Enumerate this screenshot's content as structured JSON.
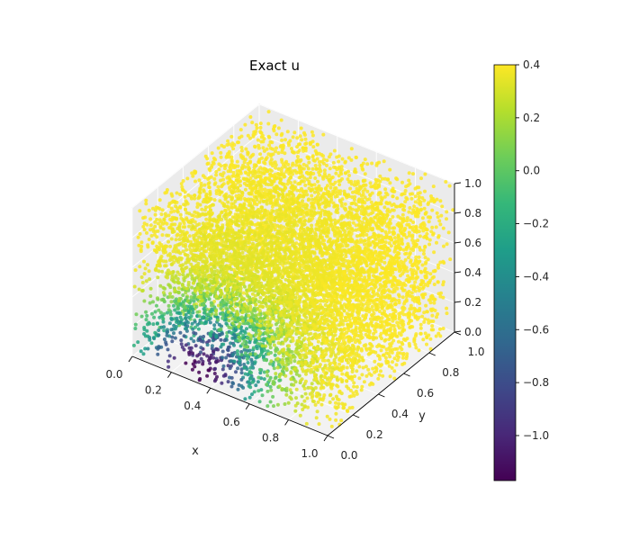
{
  "chart_data": {
    "type": "scatter",
    "projection": "3d",
    "title": "Exact u",
    "xlabel": "x",
    "ylabel": "y",
    "zlabel": "",
    "xlim": [
      0,
      1
    ],
    "ylim": [
      0,
      1
    ],
    "zlim": [
      0,
      1
    ],
    "x_ticks": [
      "0.0",
      "0.2",
      "0.4",
      "0.6",
      "0.8",
      "1.0"
    ],
    "y_ticks": [
      "0.0",
      "0.2",
      "0.4",
      "0.6",
      "0.8",
      "1.0"
    ],
    "z_ticks": [
      "0.0",
      "0.2",
      "0.4",
      "0.6",
      "0.8",
      "1.0"
    ],
    "grid": true,
    "colormap": "viridis",
    "colorbar": {
      "min": -1.17,
      "max": 0.4,
      "ticks": [
        "0.4",
        "0.2",
        "0.0",
        "−0.2",
        "−0.4",
        "−0.6",
        "−0.8",
        "−1.0"
      ],
      "tick_values": [
        0.4,
        0.2,
        0.0,
        -0.2,
        -0.4,
        -0.6,
        -0.8,
        -1.0
      ]
    },
    "points_description": "about 8000 points uniformly filling the unit cube; u lowest (about -1.17) near x≈0.3, y≈0, z≈0 and highest (about 0.4) near x≈0.6, y≈0.8, z≈1",
    "point_count": 8000
  }
}
